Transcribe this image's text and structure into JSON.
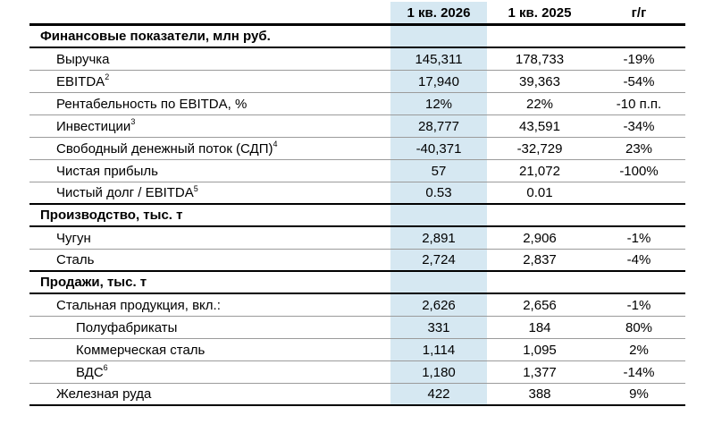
{
  "colors": {
    "highlight": "#d6e8f2"
  },
  "header": {
    "period_current": "1 кв. 2026",
    "period_prior": "1 кв. 2025",
    "yoy": "г/г"
  },
  "sections": [
    {
      "title": "Финансовые показатели, млн руб.",
      "rows": [
        {
          "label": "Выручка",
          "sup": "",
          "current": "145,311",
          "prior": "178,733",
          "yoy": "-19%"
        },
        {
          "label": "EBITDA",
          "sup": "2",
          "current": "17,940",
          "prior": "39,363",
          "yoy": "-54%"
        },
        {
          "label": "Рентабельность по EBITDA, %",
          "sup": "",
          "current": "12%",
          "prior": "22%",
          "yoy": "-10 п.п."
        },
        {
          "label": "Инвестиции",
          "sup": "3",
          "current": "28,777",
          "prior": "43,591",
          "yoy": "-34%"
        },
        {
          "label": "Свободный денежный поток (СДП)",
          "sup": "4",
          "current": "-40,371",
          "prior": "-32,729",
          "yoy": "23%"
        },
        {
          "label": "Чистая прибыль",
          "sup": "",
          "current": "57",
          "prior": "21,072",
          "yoy": "-100%"
        },
        {
          "label": "Чистый долг / EBITDA",
          "sup": "5",
          "current": "0.53",
          "prior": "0.01",
          "yoy": ""
        }
      ]
    },
    {
      "title": "Производство, тыс. т",
      "rows": [
        {
          "label": "Чугун",
          "sup": "",
          "current": "2,891",
          "prior": "2,906",
          "yoy": "-1%"
        },
        {
          "label": "Сталь",
          "sup": "",
          "current": "2,724",
          "prior": "2,837",
          "yoy": "-4%"
        }
      ]
    },
    {
      "title": "Продажи, тыс. т",
      "rows": [
        {
          "label": "Стальная продукция, вкл.:",
          "sup": "",
          "current": "2,626",
          "prior": "2,656",
          "yoy": "-1%"
        },
        {
          "label": "Полуфабрикаты",
          "sup": "",
          "current": "331",
          "prior": "184",
          "yoy": "80%"
        },
        {
          "label": "Коммерческая сталь",
          "sup": "",
          "current": "1,114",
          "prior": "1,095",
          "yoy": "2%"
        },
        {
          "label": "ВДС",
          "sup": "6",
          "current": "1,180",
          "prior": "1,377",
          "yoy": "-14%"
        },
        {
          "label": "Железная руда",
          "sup": "",
          "current": "422",
          "prior": "388",
          "yoy": "9%"
        }
      ]
    }
  ]
}
